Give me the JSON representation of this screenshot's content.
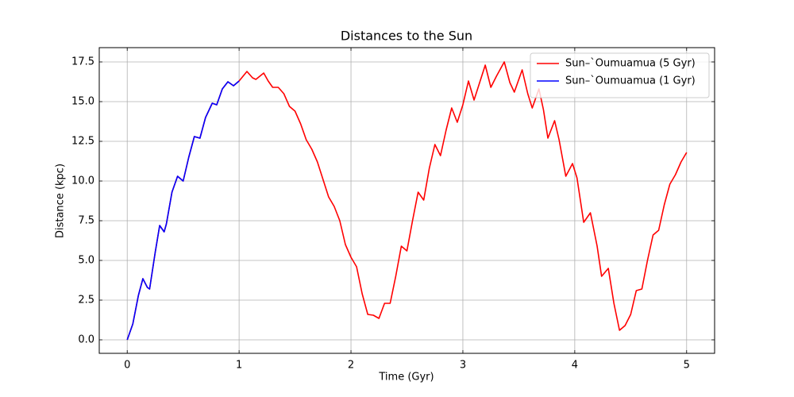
{
  "chart_data": {
    "type": "line",
    "title": "Distances to the Sun",
    "x_label": "Time (Gyr)",
    "y_label": "Distance (kpc)",
    "x": [
      0,
      0.05,
      0.1,
      0.14,
      0.18,
      0.2,
      0.25,
      0.29,
      0.33,
      0.35,
      0.4,
      0.45,
      0.5,
      0.55,
      0.6,
      0.65,
      0.7,
      0.76,
      0.8,
      0.85,
      0.9,
      0.95,
      1.0,
      1.07,
      1.12,
      1.15,
      1.22,
      1.26,
      1.3,
      1.35,
      1.4,
      1.45,
      1.5,
      1.55,
      1.6,
      1.65,
      1.7,
      1.75,
      1.8,
      1.85,
      1.9,
      1.95,
      2.0,
      2.05,
      2.1,
      2.15,
      2.2,
      2.25,
      2.3,
      2.35,
      2.4,
      2.45,
      2.5,
      2.55,
      2.6,
      2.65,
      2.7,
      2.75,
      2.8,
      2.85,
      2.9,
      2.95,
      3.0,
      3.05,
      3.1,
      3.15,
      3.2,
      3.25,
      3.3,
      3.37,
      3.42,
      3.46,
      3.53,
      3.58,
      3.62,
      3.68,
      3.72,
      3.76,
      3.82,
      3.86,
      3.92,
      3.98,
      4.02,
      4.08,
      4.14,
      4.2,
      4.24,
      4.3,
      4.35,
      4.4,
      4.45,
      4.5,
      4.55,
      4.6,
      4.65,
      4.7,
      4.75,
      4.8,
      4.85,
      4.9,
      4.95,
      5.0
    ],
    "series": [
      {
        "name": "Sun–`Oumuamua (5 Gyr)",
        "color": "#ff0000",
        "values": [
          0,
          1.0,
          2.8,
          3.85,
          3.3,
          3.2,
          5.5,
          7.2,
          6.8,
          7.3,
          9.3,
          10.3,
          10.0,
          11.5,
          12.8,
          12.7,
          14.0,
          14.9,
          14.8,
          15.8,
          16.25,
          16.0,
          16.3,
          16.9,
          16.5,
          16.4,
          16.8,
          16.3,
          15.9,
          15.9,
          15.5,
          14.7,
          14.4,
          13.6,
          12.6,
          12.0,
          11.2,
          10.1,
          9.0,
          8.4,
          7.5,
          6.0,
          5.2,
          4.6,
          2.9,
          1.6,
          1.55,
          1.35,
          2.3,
          2.3,
          4.0,
          5.9,
          5.6,
          7.5,
          9.3,
          8.8,
          10.8,
          12.3,
          11.6,
          13.2,
          14.6,
          13.7,
          14.8,
          16.3,
          15.1,
          16.2,
          17.3,
          15.9,
          16.6,
          17.5,
          16.2,
          15.6,
          17.0,
          15.5,
          14.6,
          15.8,
          14.5,
          12.7,
          13.8,
          12.6,
          10.3,
          11.1,
          10.2,
          7.4,
          8.0,
          5.9,
          4.0,
          4.5,
          2.3,
          0.6,
          0.9,
          1.6,
          3.1,
          3.2,
          5.0,
          6.6,
          6.9,
          8.5,
          9.8,
          10.4,
          11.2,
          11.8
        ]
      },
      {
        "name": "Sun–`Oumuamua (1 Gyr)",
        "color": "#0000ff",
        "values": [
          0,
          1.0,
          2.8,
          3.85,
          3.3,
          3.2,
          5.5,
          7.2,
          6.8,
          7.3,
          9.3,
          10.3,
          10.0,
          11.5,
          12.8,
          12.7,
          14.0,
          14.9,
          14.8,
          15.8,
          16.25,
          16.0,
          16.3,
          null,
          null,
          null,
          null,
          null,
          null,
          null,
          null,
          null,
          null,
          null,
          null,
          null,
          null,
          null,
          null,
          null,
          null,
          null,
          null,
          null,
          null,
          null,
          null,
          null,
          null,
          null,
          null,
          null,
          null,
          null,
          null,
          null,
          null,
          null,
          null,
          null,
          null,
          null,
          null,
          null,
          null,
          null,
          null,
          null,
          null,
          null,
          null,
          null,
          null,
          null,
          null,
          null,
          null,
          null,
          null,
          null,
          null,
          null,
          null,
          null,
          null,
          null,
          null,
          null,
          null,
          null,
          null,
          null,
          null,
          null,
          null,
          null,
          null,
          null,
          null,
          null,
          null,
          null
        ]
      }
    ],
    "xlim": [
      -0.25,
      5.25
    ],
    "ylim": [
      -0.85,
      18.4
    ],
    "xticks": [
      0,
      1,
      2,
      3,
      4,
      5
    ],
    "yticks": [
      {
        "value": 0,
        "label": "0.0"
      },
      {
        "value": 2.5,
        "label": "2.5"
      },
      {
        "value": 5,
        "label": "5.0"
      },
      {
        "value": 7.5,
        "label": "7.5"
      },
      {
        "value": 10,
        "label": "10.0"
      },
      {
        "value": 12.5,
        "label": "12.5"
      },
      {
        "value": 15,
        "label": "15.0"
      },
      {
        "value": 17.5,
        "label": "17.5"
      }
    ],
    "grid": true,
    "legend": "upper right"
  }
}
